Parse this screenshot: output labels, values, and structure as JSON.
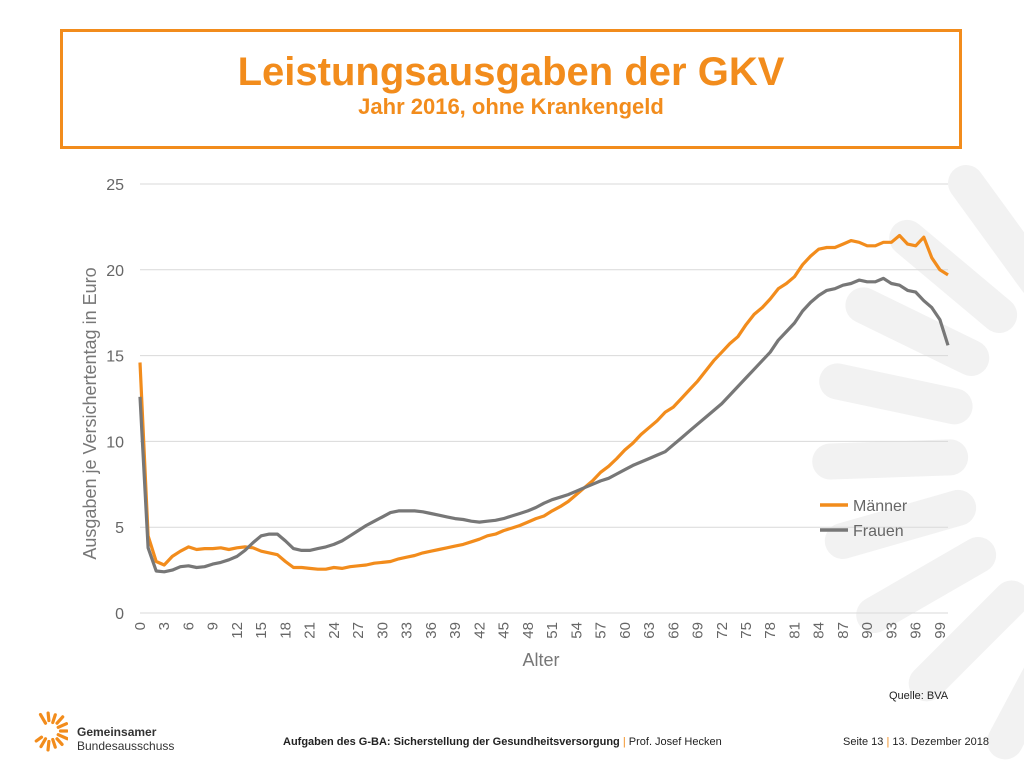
{
  "slide": {
    "title": "Leistungsausgaben der GKV",
    "subtitle": "Jahr 2016, ohne Krankengeld",
    "source": "Quelle: BVA",
    "footer_bold": "Aufgaben des G-BA: Sicherstellung der Gesundheitsversorgung",
    "footer_sep": "|",
    "footer_author": "Prof. Josef Hecken",
    "page_label": "Seite 13",
    "page_sep": "|",
    "date": "13. Dezember 2018",
    "logo_line1": "Gemeinsamer",
    "logo_line2": "Bundesausschuss",
    "logo_icon": "sun-rays-logo-icon"
  },
  "colors": {
    "accent": "#f28c1c",
    "maenner": "#f28c1c",
    "frauen": "#777777",
    "grid": "#d9d9d9",
    "deco": "#f2f2f2"
  },
  "chart_data": {
    "type": "line",
    "xlabel": "Alter",
    "ylabel": "Ausgaben je Versichertentag in Euro",
    "ylim": [
      0,
      25
    ],
    "yticks": [
      0,
      5,
      10,
      15,
      20,
      25
    ],
    "xlim": [
      0,
      100
    ],
    "xticks": [
      0,
      3,
      6,
      9,
      12,
      15,
      18,
      21,
      24,
      27,
      30,
      33,
      36,
      39,
      42,
      45,
      48,
      51,
      54,
      57,
      60,
      63,
      66,
      69,
      72,
      75,
      78,
      81,
      84,
      87,
      90,
      93,
      96,
      99
    ],
    "grid": true,
    "legend_position": "right",
    "series": [
      {
        "name": "Männer",
        "color": "#f28c1c",
        "points": [
          [
            0,
            14.6
          ],
          [
            1,
            4.5
          ],
          [
            2,
            3.0
          ],
          [
            3,
            2.8
          ],
          [
            4,
            3.3
          ],
          [
            5,
            3.6
          ],
          [
            6,
            3.85
          ],
          [
            7,
            3.7
          ],
          [
            8,
            3.75
          ],
          [
            9,
            3.75
          ],
          [
            10,
            3.8
          ],
          [
            11,
            3.7
          ],
          [
            12,
            3.8
          ],
          [
            13,
            3.85
          ],
          [
            14,
            3.8
          ],
          [
            15,
            3.6
          ],
          [
            16,
            3.5
          ],
          [
            17,
            3.4
          ],
          [
            18,
            3.0
          ],
          [
            19,
            2.65
          ],
          [
            20,
            2.65
          ],
          [
            21,
            2.6
          ],
          [
            22,
            2.55
          ],
          [
            23,
            2.55
          ],
          [
            24,
            2.65
          ],
          [
            25,
            2.6
          ],
          [
            26,
            2.7
          ],
          [
            27,
            2.75
          ],
          [
            28,
            2.8
          ],
          [
            29,
            2.9
          ],
          [
            30,
            2.95
          ],
          [
            31,
            3.0
          ],
          [
            32,
            3.15
          ],
          [
            33,
            3.25
          ],
          [
            34,
            3.35
          ],
          [
            35,
            3.5
          ],
          [
            36,
            3.6
          ],
          [
            37,
            3.7
          ],
          [
            38,
            3.8
          ],
          [
            39,
            3.9
          ],
          [
            40,
            4.0
          ],
          [
            41,
            4.15
          ],
          [
            42,
            4.3
          ],
          [
            43,
            4.5
          ],
          [
            44,
            4.6
          ],
          [
            45,
            4.8
          ],
          [
            46,
            4.95
          ],
          [
            47,
            5.1
          ],
          [
            48,
            5.3
          ],
          [
            49,
            5.5
          ],
          [
            50,
            5.65
          ],
          [
            51,
            5.95
          ],
          [
            52,
            6.2
          ],
          [
            53,
            6.5
          ],
          [
            54,
            6.9
          ],
          [
            55,
            7.3
          ],
          [
            56,
            7.7
          ],
          [
            57,
            8.2
          ],
          [
            58,
            8.55
          ],
          [
            59,
            9.0
          ],
          [
            60,
            9.5
          ],
          [
            61,
            9.9
          ],
          [
            62,
            10.4
          ],
          [
            63,
            10.8
          ],
          [
            64,
            11.2
          ],
          [
            65,
            11.7
          ],
          [
            66,
            12.0
          ],
          [
            67,
            12.5
          ],
          [
            68,
            13.0
          ],
          [
            69,
            13.5
          ],
          [
            70,
            14.1
          ],
          [
            71,
            14.7
          ],
          [
            72,
            15.2
          ],
          [
            73,
            15.7
          ],
          [
            74,
            16.1
          ],
          [
            75,
            16.8
          ],
          [
            76,
            17.4
          ],
          [
            77,
            17.8
          ],
          [
            78,
            18.3
          ],
          [
            79,
            18.9
          ],
          [
            80,
            19.2
          ],
          [
            81,
            19.6
          ],
          [
            82,
            20.3
          ],
          [
            83,
            20.8
          ],
          [
            84,
            21.2
          ],
          [
            85,
            21.3
          ],
          [
            86,
            21.3
          ],
          [
            87,
            21.5
          ],
          [
            88,
            21.7
          ],
          [
            89,
            21.6
          ],
          [
            90,
            21.4
          ],
          [
            91,
            21.4
          ],
          [
            92,
            21.6
          ],
          [
            93,
            21.6
          ],
          [
            94,
            22.0
          ],
          [
            95,
            21.5
          ],
          [
            96,
            21.4
          ],
          [
            97,
            21.9
          ],
          [
            98,
            20.7
          ],
          [
            99,
            20.0
          ],
          [
            100,
            19.7
          ]
        ]
      },
      {
        "name": "Frauen",
        "color": "#777777",
        "points": [
          [
            0,
            12.6
          ],
          [
            1,
            3.8
          ],
          [
            2,
            2.45
          ],
          [
            3,
            2.4
          ],
          [
            4,
            2.5
          ],
          [
            5,
            2.7
          ],
          [
            6,
            2.75
          ],
          [
            7,
            2.65
          ],
          [
            8,
            2.7
          ],
          [
            9,
            2.85
          ],
          [
            10,
            2.95
          ],
          [
            11,
            3.1
          ],
          [
            12,
            3.3
          ],
          [
            13,
            3.65
          ],
          [
            14,
            4.1
          ],
          [
            15,
            4.5
          ],
          [
            16,
            4.6
          ],
          [
            17,
            4.6
          ],
          [
            18,
            4.2
          ],
          [
            19,
            3.75
          ],
          [
            20,
            3.65
          ],
          [
            21,
            3.65
          ],
          [
            22,
            3.75
          ],
          [
            23,
            3.85
          ],
          [
            24,
            4.0
          ],
          [
            25,
            4.2
          ],
          [
            26,
            4.5
          ],
          [
            27,
            4.8
          ],
          [
            28,
            5.1
          ],
          [
            29,
            5.35
          ],
          [
            30,
            5.6
          ],
          [
            31,
            5.85
          ],
          [
            32,
            5.95
          ],
          [
            33,
            5.95
          ],
          [
            34,
            5.95
          ],
          [
            35,
            5.9
          ],
          [
            36,
            5.8
          ],
          [
            37,
            5.7
          ],
          [
            38,
            5.6
          ],
          [
            39,
            5.5
          ],
          [
            40,
            5.45
          ],
          [
            41,
            5.35
          ],
          [
            42,
            5.3
          ],
          [
            43,
            5.35
          ],
          [
            44,
            5.4
          ],
          [
            45,
            5.5
          ],
          [
            46,
            5.65
          ],
          [
            47,
            5.8
          ],
          [
            48,
            5.95
          ],
          [
            49,
            6.15
          ],
          [
            50,
            6.4
          ],
          [
            51,
            6.6
          ],
          [
            52,
            6.75
          ],
          [
            53,
            6.9
          ],
          [
            54,
            7.1
          ],
          [
            55,
            7.3
          ],
          [
            56,
            7.5
          ],
          [
            57,
            7.7
          ],
          [
            58,
            7.85
          ],
          [
            59,
            8.1
          ],
          [
            60,
            8.35
          ],
          [
            61,
            8.6
          ],
          [
            62,
            8.8
          ],
          [
            63,
            9.0
          ],
          [
            64,
            9.2
          ],
          [
            65,
            9.4
          ],
          [
            66,
            9.8
          ],
          [
            67,
            10.2
          ],
          [
            68,
            10.6
          ],
          [
            69,
            11.0
          ],
          [
            70,
            11.4
          ],
          [
            71,
            11.8
          ],
          [
            72,
            12.2
          ],
          [
            73,
            12.7
          ],
          [
            74,
            13.2
          ],
          [
            75,
            13.7
          ],
          [
            76,
            14.2
          ],
          [
            77,
            14.7
          ],
          [
            78,
            15.2
          ],
          [
            79,
            15.9
          ],
          [
            80,
            16.4
          ],
          [
            81,
            16.9
          ],
          [
            82,
            17.6
          ],
          [
            83,
            18.1
          ],
          [
            84,
            18.5
          ],
          [
            85,
            18.8
          ],
          [
            86,
            18.9
          ],
          [
            87,
            19.1
          ],
          [
            88,
            19.2
          ],
          [
            89,
            19.4
          ],
          [
            90,
            19.3
          ],
          [
            91,
            19.3
          ],
          [
            92,
            19.5
          ],
          [
            93,
            19.2
          ],
          [
            94,
            19.1
          ],
          [
            95,
            18.8
          ],
          [
            96,
            18.7
          ],
          [
            97,
            18.2
          ],
          [
            98,
            17.8
          ],
          [
            99,
            17.1
          ],
          [
            100,
            15.6
          ]
        ]
      }
    ]
  }
}
